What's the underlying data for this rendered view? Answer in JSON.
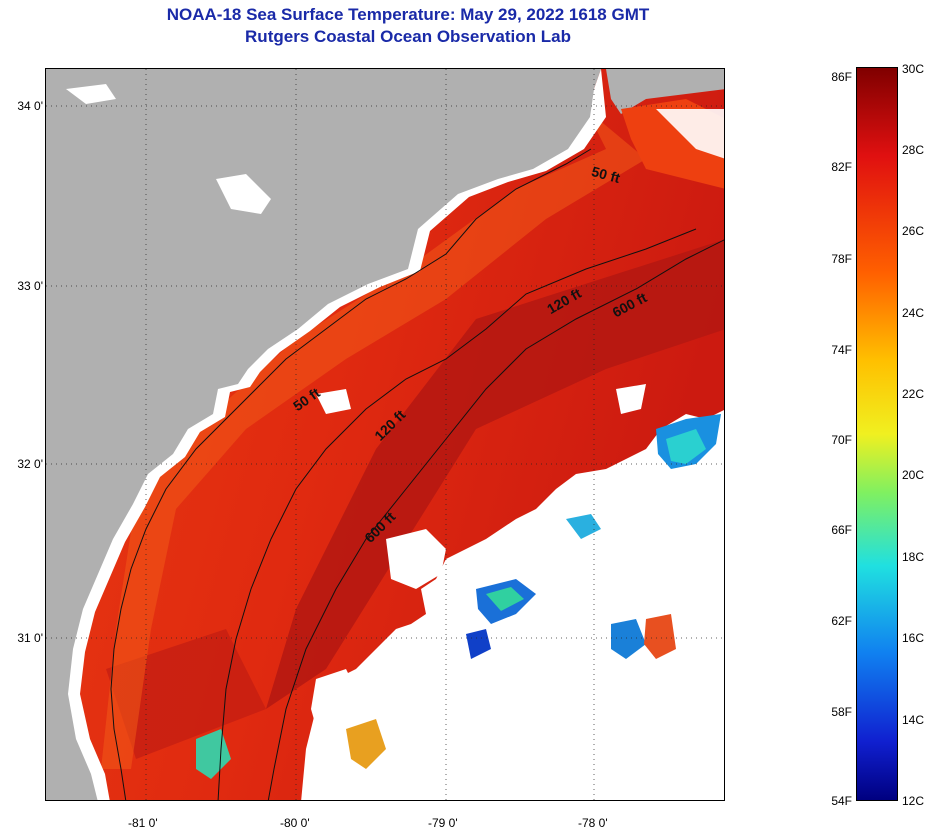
{
  "title": "NOAA-18 Sea Surface Temperature:  May 29, 2022 1618 GMT",
  "subtitle": "Rutgers Coastal Ocean Observation Lab",
  "map": {
    "lat_labels": [
      "34 0'",
      "33 0'",
      "32 0'",
      "31 0'"
    ],
    "lon_labels": [
      "-81 0'",
      "-80 0'",
      "-79 0'",
      "-78 0'"
    ],
    "contour_labels": {
      "c50_north": "50 ft",
      "c50_south": "50 ft",
      "c120_north": "120 ft",
      "c120_south": "120 ft",
      "c600_north": "600 ft",
      "c600_south": "600 ft"
    },
    "colors": {
      "land": "#b0b0b0",
      "cloud": "#ffffff",
      "water_warm": "#ee3010",
      "water_hot": "#b01010",
      "water_cool": "#1a90e0"
    }
  },
  "colorbar": {
    "fahrenheit": [
      "86F",
      "82F",
      "78F",
      "74F",
      "70F",
      "66F",
      "62F",
      "58F",
      "54F"
    ],
    "celsius": [
      "30C",
      "28C",
      "26C",
      "24C",
      "22C",
      "20C",
      "18C",
      "16C",
      "14C",
      "12C"
    ]
  }
}
